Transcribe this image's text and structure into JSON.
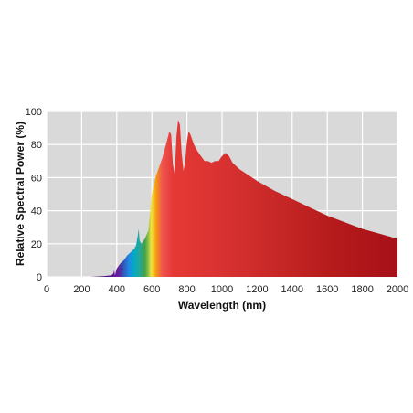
{
  "chart_data": {
    "type": "area",
    "title": "",
    "xlabel": "Wavelength (nm)",
    "ylabel": "Relative Spectral Power (%)",
    "xlim": [
      0,
      2000
    ],
    "ylim": [
      0,
      100
    ],
    "x_ticks": [
      "0",
      "200",
      "400",
      "600",
      "800",
      "1000",
      "1200",
      "1400",
      "1600",
      "1800",
      "2000"
    ],
    "y_ticks": [
      "0",
      "20",
      "40",
      "60",
      "80",
      "100"
    ],
    "grid": true,
    "legend": "none",
    "plot_background": "#d9d9d9",
    "grid_color": "#ffffff",
    "fill": "spectral gradient (violet to deep red)",
    "colors": {
      "violet": "#6a1b9a",
      "blue": "#1565c0",
      "green": "#43a047",
      "yellow": "#f5e33b",
      "orange": "#f39c12",
      "red": "#e53935",
      "deep_red": "#a61018"
    },
    "series": [
      {
        "x": [
          250,
          330,
          370,
          380,
          385,
          390,
          395,
          400,
          420,
          440,
          460,
          480,
          500,
          510,
          520,
          525,
          530,
          540,
          560,
          580,
          600,
          620,
          640,
          660,
          680,
          700,
          710,
          720,
          730,
          740,
          750,
          760,
          770,
          780,
          790,
          800,
          810,
          820,
          840,
          860,
          880,
          900,
          920,
          940,
          960,
          980,
          1000,
          1020,
          1040,
          1060,
          1080,
          1100,
          1200,
          1300,
          1400,
          1500,
          1600,
          1700,
          1800,
          1900,
          2000
        ],
        "y": [
          0,
          0.5,
          1,
          2,
          4,
          1,
          3,
          5,
          8,
          10,
          13,
          15,
          17,
          19,
          25,
          29,
          22,
          20,
          23,
          28,
          50,
          60,
          66,
          72,
          80,
          88,
          86,
          68,
          62,
          85,
          95,
          92,
          75,
          64,
          70,
          82,
          88,
          86,
          80,
          76,
          73,
          70,
          70,
          69,
          70,
          70,
          73,
          75,
          73,
          69,
          67,
          65,
          58,
          52,
          47,
          42,
          37,
          33,
          29,
          26,
          23
        ]
      }
    ]
  }
}
